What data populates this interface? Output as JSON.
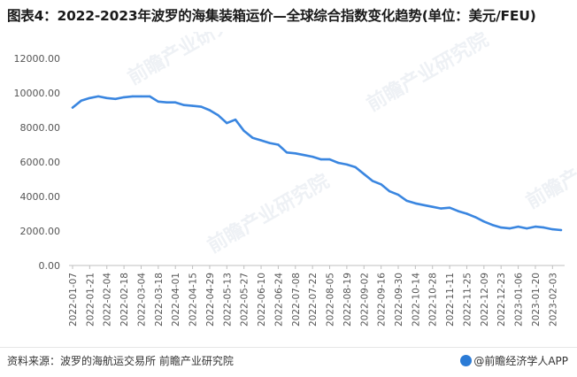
{
  "title": "图表4：2022-2023年波罗的海集装箱运价—全球综合指数变化趋势(单位：美元/FEU)",
  "source": "资料来源：波罗的海航运交易所 前瞻产业研究院",
  "brand": "@前瞻经济学人APP",
  "watermark": "前瞻产业研究院",
  "colors": {
    "line": "#3a86e0",
    "axis": "#bfbfbf",
    "text": "#555555"
  },
  "chart_data": {
    "type": "line",
    "title": "图表4：2022-2023年波罗的海集装箱运价—全球综合指数变化趋势(单位：美元/FEU)",
    "xlabel": "",
    "ylabel": "",
    "ylim": [
      0,
      12000
    ],
    "yticks": [
      "0.00",
      "2000.00",
      "4000.00",
      "6000.00",
      "8000.00",
      "10000.00",
      "12000.00"
    ],
    "grid": false,
    "x_tick_labels": [
      "2022-01-07",
      "2022-01-21",
      "2022-02-04",
      "2022-02-18",
      "2022-03-04",
      "2022-03-18",
      "2022-04-01",
      "2022-04-15",
      "2022-04-29",
      "2022-05-13",
      "2022-05-27",
      "2022-06-10",
      "2022-06-24",
      "2022-07-08",
      "2022-07-22",
      "2022-08-05",
      "2022-08-19",
      "2022-09-02",
      "2022-09-16",
      "2022-09-30",
      "2022-10-14",
      "2022-10-28",
      "2022-11-11",
      "2022-11-25",
      "2022-12-09",
      "2022-12-23",
      "2023-01-06",
      "2023-01-20",
      "2023-02-03"
    ],
    "x": [
      "2022-01-07",
      "2022-01-14",
      "2022-01-21",
      "2022-01-28",
      "2022-02-04",
      "2022-02-11",
      "2022-02-18",
      "2022-02-25",
      "2022-03-04",
      "2022-03-11",
      "2022-03-18",
      "2022-03-25",
      "2022-04-01",
      "2022-04-08",
      "2022-04-15",
      "2022-04-22",
      "2022-04-29",
      "2022-05-06",
      "2022-05-13",
      "2022-05-20",
      "2022-05-27",
      "2022-06-03",
      "2022-06-10",
      "2022-06-17",
      "2022-06-24",
      "2022-07-01",
      "2022-07-08",
      "2022-07-15",
      "2022-07-22",
      "2022-07-29",
      "2022-08-05",
      "2022-08-12",
      "2022-08-19",
      "2022-08-26",
      "2022-09-02",
      "2022-09-09",
      "2022-09-16",
      "2022-09-23",
      "2022-09-30",
      "2022-10-07",
      "2022-10-14",
      "2022-10-21",
      "2022-10-28",
      "2022-11-04",
      "2022-11-11",
      "2022-11-18",
      "2022-11-25",
      "2022-12-02",
      "2022-12-09",
      "2022-12-16",
      "2022-12-23",
      "2022-12-30",
      "2023-01-06",
      "2023-01-13",
      "2023-01-20",
      "2023-01-27",
      "2023-02-03",
      "2023-02-10"
    ],
    "series": [
      {
        "name": "",
        "values": [
          9150,
          9550,
          9700,
          9800,
          9700,
          9650,
          9750,
          9800,
          9800,
          9800,
          9500,
          9450,
          9450,
          9300,
          9250,
          9200,
          9000,
          8700,
          8250,
          8450,
          7800,
          7400,
          7250,
          7100,
          7000,
          6550,
          6500,
          6400,
          6300,
          6150,
          6150,
          5950,
          5850,
          5700,
          5300,
          4900,
          4700,
          4300,
          4100,
          3750,
          3600,
          3500,
          3400,
          3300,
          3350,
          3150,
          3000,
          2800,
          2550,
          2350,
          2200,
          2150,
          2250,
          2150,
          2250,
          2200,
          2100,
          2050
        ]
      }
    ]
  }
}
